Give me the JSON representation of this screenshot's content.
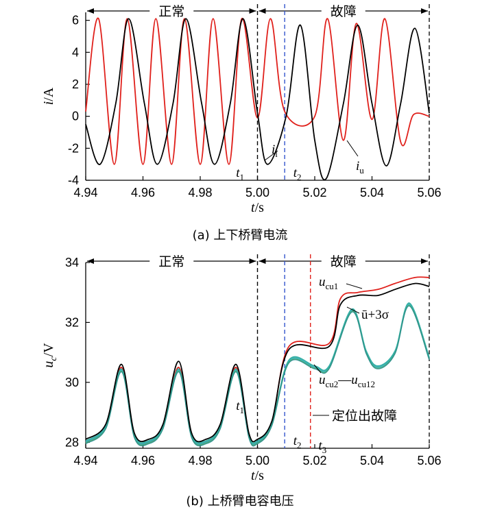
{
  "chart_data": [
    {
      "type": "line",
      "caption": "(a)  上下桥臂电流",
      "xlabel": "t/s",
      "ylabel": "i/A",
      "xlim": [
        4.94,
        5.06
      ],
      "ylim": [
        -4,
        6.5
      ],
      "xticks": [
        "4.94",
        "4.96",
        "4.98",
        "5.00",
        "5.02",
        "5.04",
        "5.06"
      ],
      "yticks": [
        "-4",
        "-2",
        "0",
        "2",
        "4",
        "6"
      ],
      "regions": [
        {
          "label": "正常",
          "from": 4.94,
          "to": 5.0
        },
        {
          "label": "故障",
          "from": 5.0,
          "to": 5.06
        }
      ],
      "markers": [
        {
          "label": "t1",
          "x": 5.0,
          "color": "#000000"
        },
        {
          "label": "t2",
          "x": 5.0095,
          "color": "#3355cc"
        }
      ],
      "series": [
        {
          "name": "iu",
          "color": "#e0201b",
          "description_points": [
            [
              4.94,
              0.3
            ],
            [
              4.9445,
              6.1
            ],
            [
              4.95,
              -3.0
            ],
            [
              4.9545,
              6.1
            ],
            [
              4.96,
              -3.0
            ],
            [
              4.9645,
              6.1
            ],
            [
              4.97,
              -3.0
            ],
            [
              4.9745,
              6.1
            ],
            [
              4.98,
              -3.0
            ],
            [
              4.9845,
              6.1
            ],
            [
              4.99,
              -3.0
            ],
            [
              4.9945,
              6.1
            ],
            [
              5.0,
              -0.1
            ],
            [
              5.0045,
              6.1
            ],
            [
              5.0095,
              0.3
            ],
            [
              5.02,
              0.0
            ],
            [
              5.0245,
              6.1
            ],
            [
              5.03,
              -1.5
            ],
            [
              5.0345,
              5.8
            ],
            [
              5.04,
              -0.2
            ],
            [
              5.0445,
              6.1
            ],
            [
              5.05,
              -1.6
            ],
            [
              5.0545,
              0.1
            ],
            [
              5.06,
              0.0
            ]
          ]
        },
        {
          "name": "il",
          "color": "#000000",
          "description_points": [
            [
              4.94,
              -0.5
            ],
            [
              4.945,
              -3.0
            ],
            [
              4.9505,
              0.8
            ],
            [
              4.955,
              6.1
            ],
            [
              4.9605,
              0.8
            ],
            [
              4.965,
              -3.0
            ],
            [
              4.9705,
              0.8
            ],
            [
              4.975,
              6.1
            ],
            [
              4.9805,
              0.8
            ],
            [
              4.985,
              -3.0
            ],
            [
              4.9905,
              0.8
            ],
            [
              4.995,
              6.1
            ],
            [
              5.0,
              0.2
            ],
            [
              5.0035,
              -3.0
            ],
            [
              5.01,
              0.0
            ],
            [
              5.015,
              5.7
            ],
            [
              5.02,
              -1.5
            ],
            [
              5.024,
              -3.9
            ],
            [
              5.03,
              0.8
            ],
            [
              5.035,
              5.7
            ],
            [
              5.04,
              0.8
            ],
            [
              5.045,
              -3.1
            ],
            [
              5.05,
              0.8
            ],
            [
              5.055,
              5.5
            ],
            [
              5.06,
              0.2
            ]
          ]
        }
      ],
      "annotations": [
        "t1",
        "t2",
        "il",
        "iu"
      ]
    },
    {
      "type": "line",
      "caption": "(b)  上桥臂电容电压",
      "xlabel": "t/s",
      "ylabel": "uc/V",
      "xlim": [
        4.94,
        5.06
      ],
      "ylim": [
        27.8,
        34
      ],
      "xticks": [
        "4.94",
        "4.96",
        "4.98",
        "5.00",
        "5.02",
        "5.04",
        "5.06"
      ],
      "yticks": [
        "28",
        "30",
        "32",
        "34"
      ],
      "regions": [
        {
          "label": "正常",
          "from": 4.94,
          "to": 5.0
        },
        {
          "label": "故障",
          "from": 5.0,
          "to": 5.06
        }
      ],
      "markers": [
        {
          "label": "t1",
          "x": 5.0,
          "color": "#000000"
        },
        {
          "label": "t2",
          "x": 5.0095,
          "color": "#3355cc"
        },
        {
          "label": "t3",
          "x": 5.0185,
          "color": "#e0201b"
        }
      ],
      "series": [
        {
          "name": "ucu1",
          "color": "#e0201b",
          "description_points": [
            [
              4.94,
              28.0
            ],
            [
              4.947,
              28.5
            ],
            [
              4.9525,
              30.5
            ],
            [
              4.957,
              28.2
            ],
            [
              4.962,
              28.0
            ],
            [
              4.967,
              28.5
            ],
            [
              4.9725,
              30.5
            ],
            [
              4.977,
              28.2
            ],
            [
              4.982,
              28.0
            ],
            [
              4.987,
              28.5
            ],
            [
              4.9925,
              30.5
            ],
            [
              4.997,
              28.2
            ],
            [
              5.0,
              28.0
            ],
            [
              5.005,
              28.6
            ],
            [
              5.011,
              31.2
            ],
            [
              5.025,
              31.3
            ],
            [
              5.029,
              32.8
            ],
            [
              5.035,
              33.0
            ],
            [
              5.042,
              33.1
            ],
            [
              5.048,
              33.3
            ],
            [
              5.055,
              33.5
            ],
            [
              5.06,
              33.5
            ]
          ]
        },
        {
          "name": "ucu2—ucu12",
          "color": "#22a18a",
          "description_points": [
            [
              4.94,
              28.0
            ],
            [
              4.947,
              28.5
            ],
            [
              4.9525,
              30.4
            ],
            [
              4.957,
              28.2
            ],
            [
              4.962,
              28.0
            ],
            [
              4.967,
              28.5
            ],
            [
              4.9725,
              30.4
            ],
            [
              4.977,
              28.2
            ],
            [
              4.982,
              28.0
            ],
            [
              4.987,
              28.5
            ],
            [
              4.9925,
              30.4
            ],
            [
              4.997,
              28.2
            ],
            [
              5.0,
              28.0
            ],
            [
              5.005,
              28.6
            ],
            [
              5.011,
              30.7
            ],
            [
              5.02,
              30.5
            ],
            [
              5.025,
              30.5
            ],
            [
              5.033,
              32.4
            ],
            [
              5.038,
              31.0
            ],
            [
              5.042,
              30.5
            ],
            [
              5.048,
              31.0
            ],
            [
              5.053,
              32.6
            ],
            [
              5.06,
              30.8
            ]
          ]
        },
        {
          "name": "ū+3σ",
          "color": "#000000",
          "description_points": [
            [
              4.94,
              28.1
            ],
            [
              4.947,
              28.6
            ],
            [
              4.9525,
              30.6
            ],
            [
              4.957,
              28.3
            ],
            [
              4.962,
              28.1
            ],
            [
              4.967,
              28.6
            ],
            [
              4.9725,
              30.7
            ],
            [
              4.977,
              28.3
            ],
            [
              4.982,
              28.1
            ],
            [
              4.987,
              28.6
            ],
            [
              4.9925,
              30.6
            ],
            [
              4.997,
              28.3
            ],
            [
              5.0,
              28.1
            ],
            [
              5.005,
              28.7
            ],
            [
              5.011,
              31.1
            ],
            [
              5.025,
              31.2
            ],
            [
              5.029,
              32.6
            ],
            [
              5.035,
              32.9
            ],
            [
              5.042,
              32.9
            ],
            [
              5.048,
              33.1
            ],
            [
              5.055,
              33.3
            ],
            [
              5.06,
              33.2
            ]
          ]
        }
      ],
      "annotations": [
        "ucu1",
        "ū+3σ",
        "ucu2—ucu12",
        "定位出故障",
        "t1",
        "t2",
        "t3"
      ]
    }
  ]
}
